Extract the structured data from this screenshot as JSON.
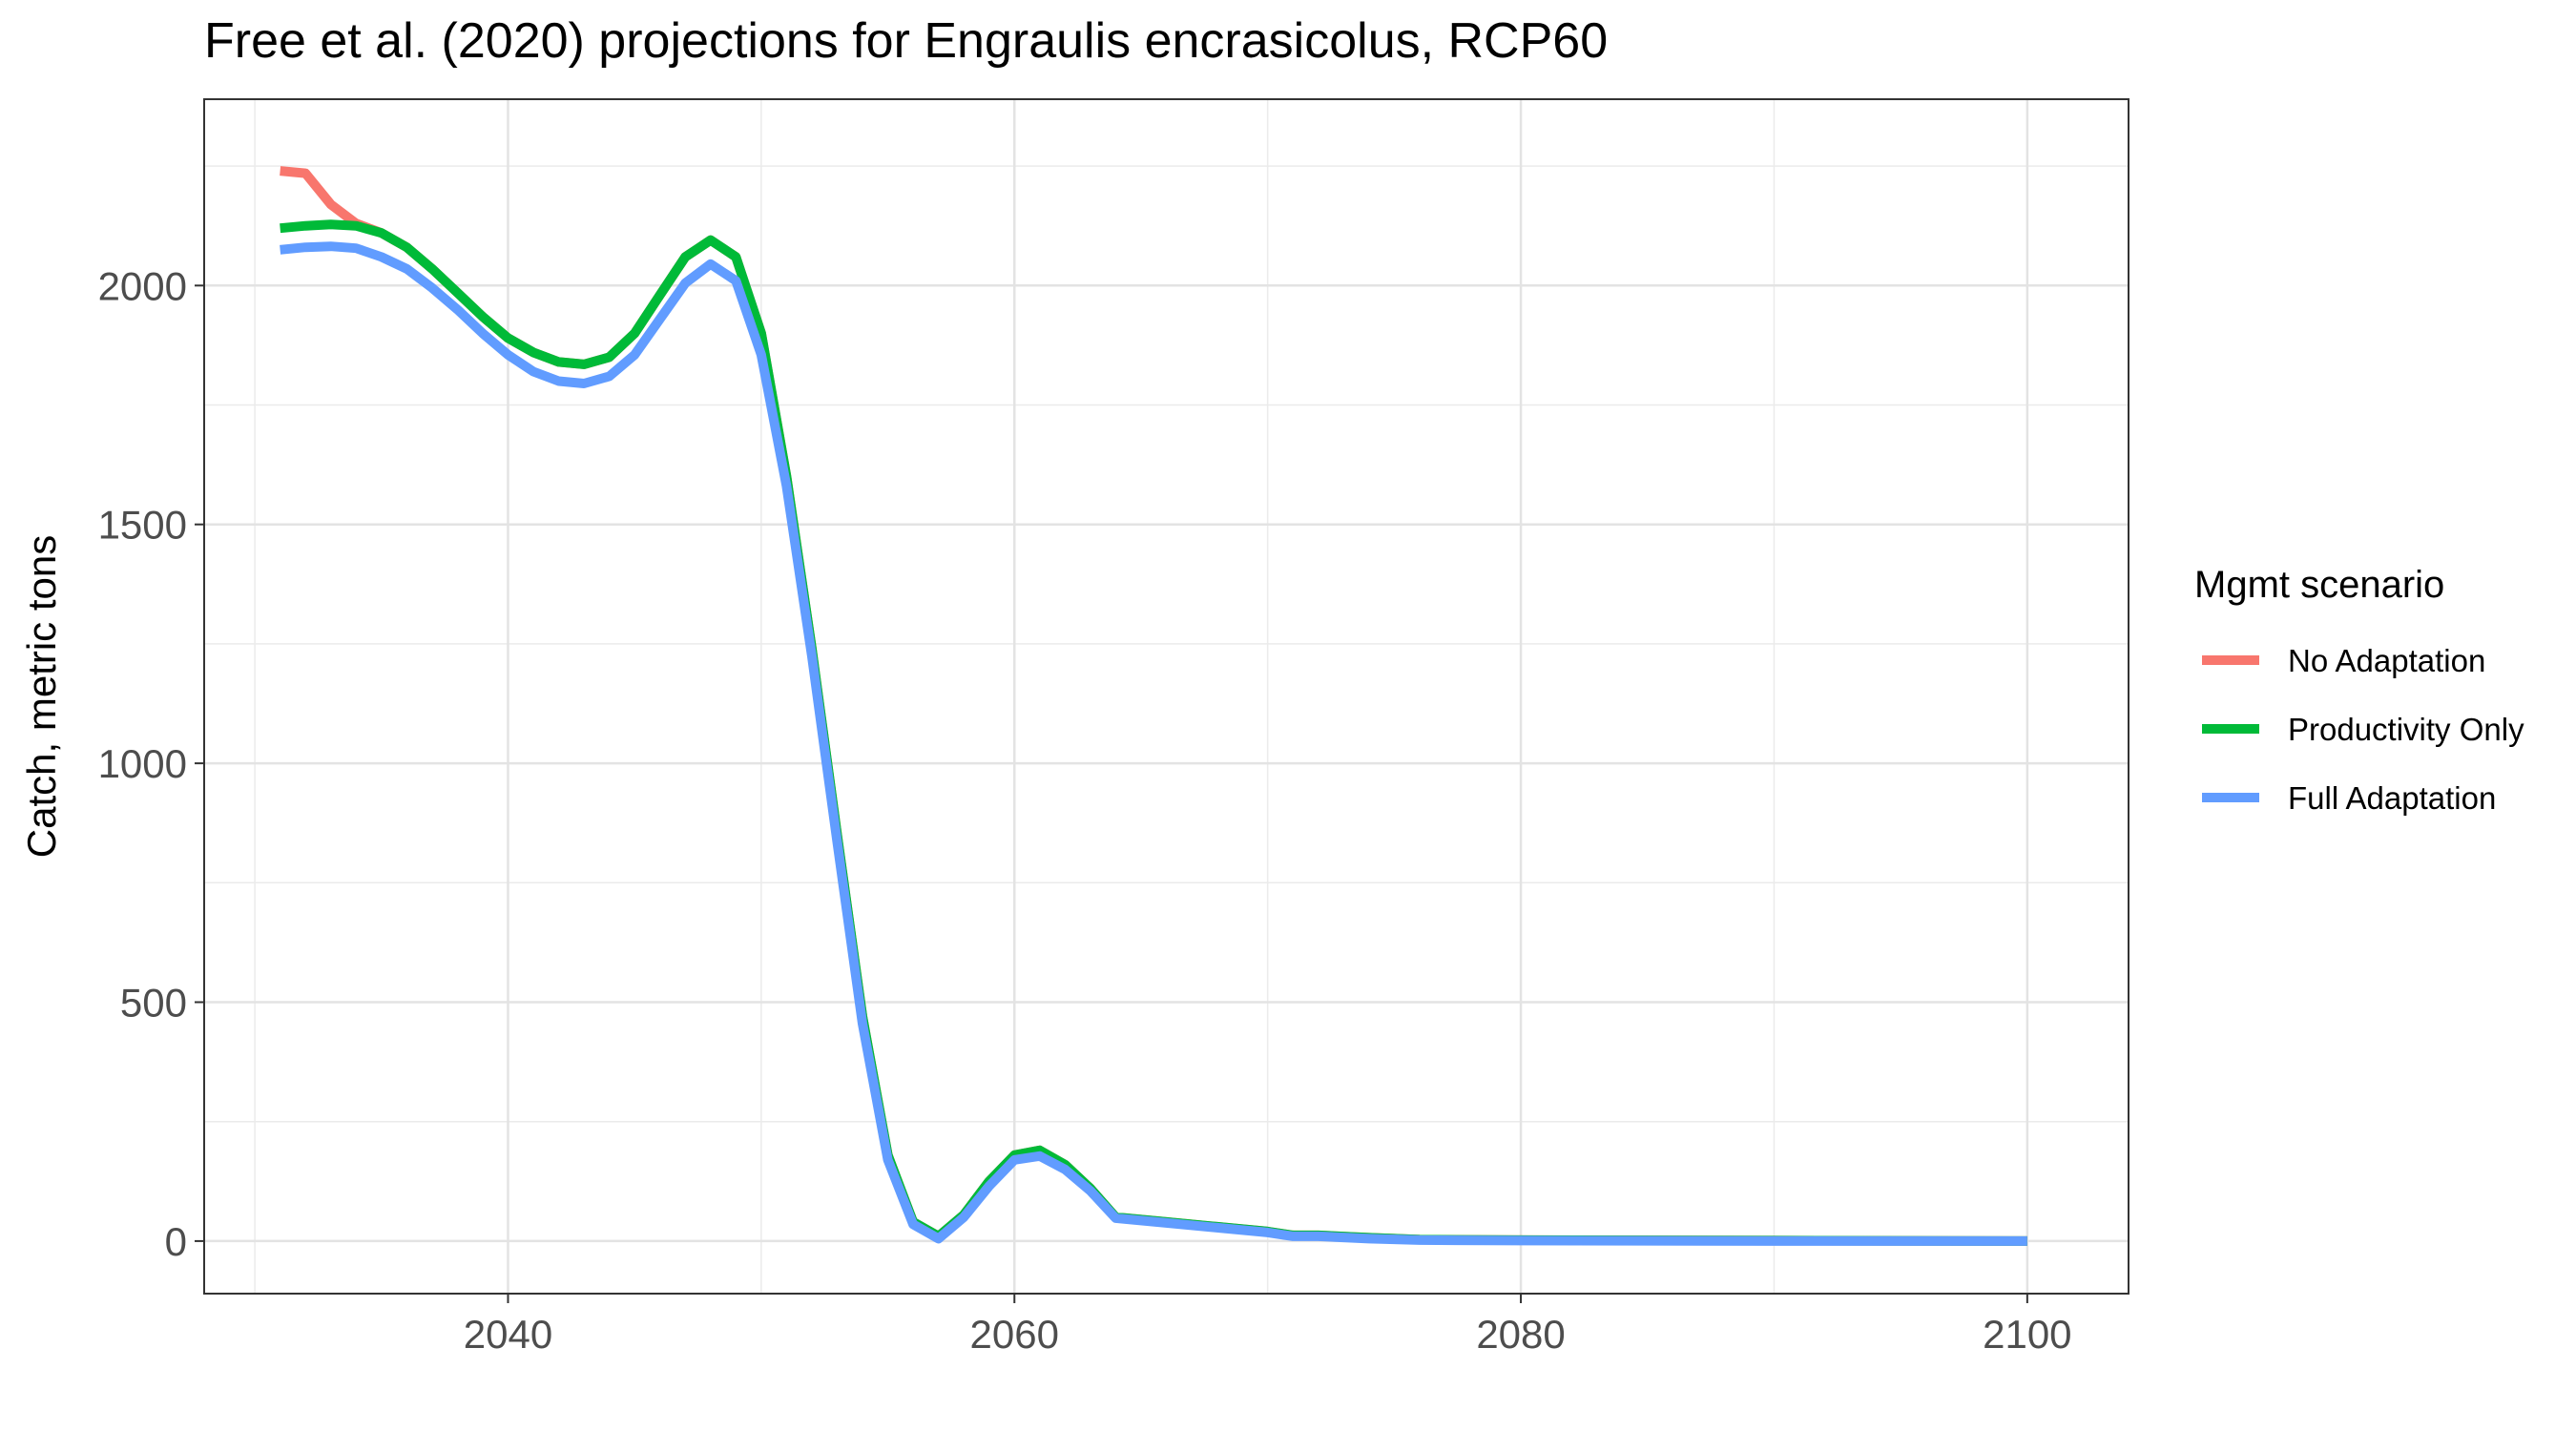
{
  "chart_data": {
    "type": "line",
    "title": "Free et al. (2020) projections for Engraulis encrasicolus, RCP60",
    "xlabel": "",
    "ylabel": "Catch, metric tons",
    "xlim": [
      2028,
      2104
    ],
    "ylim": [
      -110,
      2390
    ],
    "x_ticks": [
      2040,
      2060,
      2080,
      2100
    ],
    "y_ticks": [
      0,
      500,
      1000,
      1500,
      2000
    ],
    "grid": true,
    "legend": {
      "title": "Mgmt scenario",
      "position": "right",
      "entries": [
        "No Adaptation",
        "Productivity Only",
        "Full Adaptation"
      ]
    },
    "series": [
      {
        "name": "No Adaptation",
        "color": "#F8766D",
        "points": [
          [
            2031,
            2240
          ],
          [
            2032,
            2235
          ],
          [
            2033,
            2170
          ],
          [
            2034,
            2130
          ],
          [
            2035,
            2110
          ],
          [
            2036,
            2080
          ],
          [
            2037,
            2035
          ],
          [
            2038,
            1985
          ],
          [
            2039,
            1935
          ],
          [
            2040,
            1890
          ],
          [
            2041,
            1860
          ],
          [
            2042,
            1840
          ],
          [
            2043,
            1835
          ],
          [
            2044,
            1850
          ],
          [
            2045,
            1900
          ],
          [
            2046,
            1980
          ],
          [
            2047,
            2060
          ],
          [
            2048,
            2095
          ],
          [
            2049,
            2060
          ],
          [
            2050,
            1900
          ],
          [
            2051,
            1600
          ],
          [
            2052,
            1240
          ],
          [
            2053,
            850
          ],
          [
            2054,
            470
          ],
          [
            2055,
            180
          ],
          [
            2056,
            40
          ],
          [
            2057,
            10
          ],
          [
            2058,
            55
          ],
          [
            2059,
            125
          ],
          [
            2060,
            180
          ],
          [
            2061,
            190
          ],
          [
            2062,
            160
          ],
          [
            2063,
            110
          ],
          [
            2064,
            50
          ],
          [
            2066,
            40
          ],
          [
            2068,
            30
          ],
          [
            2070,
            20
          ],
          [
            2071,
            12
          ],
          [
            2072,
            12
          ],
          [
            2074,
            7
          ],
          [
            2076,
            3
          ],
          [
            2080,
            2
          ],
          [
            2090,
            1
          ],
          [
            2100,
            0
          ]
        ]
      },
      {
        "name": "Productivity Only",
        "color": "#00BA38",
        "points": [
          [
            2031,
            2120
          ],
          [
            2032,
            2125
          ],
          [
            2033,
            2128
          ],
          [
            2034,
            2125
          ],
          [
            2035,
            2110
          ],
          [
            2036,
            2080
          ],
          [
            2037,
            2035
          ],
          [
            2038,
            1985
          ],
          [
            2039,
            1935
          ],
          [
            2040,
            1890
          ],
          [
            2041,
            1860
          ],
          [
            2042,
            1840
          ],
          [
            2043,
            1835
          ],
          [
            2044,
            1850
          ],
          [
            2045,
            1900
          ],
          [
            2046,
            1980
          ],
          [
            2047,
            2060
          ],
          [
            2048,
            2095
          ],
          [
            2049,
            2060
          ],
          [
            2050,
            1900
          ],
          [
            2051,
            1600
          ],
          [
            2052,
            1240
          ],
          [
            2053,
            850
          ],
          [
            2054,
            470
          ],
          [
            2055,
            180
          ],
          [
            2056,
            40
          ],
          [
            2057,
            10
          ],
          [
            2058,
            55
          ],
          [
            2059,
            125
          ],
          [
            2060,
            180
          ],
          [
            2061,
            190
          ],
          [
            2062,
            160
          ],
          [
            2063,
            110
          ],
          [
            2064,
            50
          ],
          [
            2066,
            40
          ],
          [
            2068,
            30
          ],
          [
            2070,
            20
          ],
          [
            2071,
            12
          ],
          [
            2072,
            12
          ],
          [
            2074,
            7
          ],
          [
            2076,
            3
          ],
          [
            2080,
            2
          ],
          [
            2090,
            1
          ],
          [
            2100,
            0
          ]
        ]
      },
      {
        "name": "Full Adaptation",
        "color": "#619CFF",
        "points": [
          [
            2031,
            2075
          ],
          [
            2032,
            2080
          ],
          [
            2033,
            2082
          ],
          [
            2034,
            2078
          ],
          [
            2035,
            2060
          ],
          [
            2036,
            2035
          ],
          [
            2037,
            1995
          ],
          [
            2038,
            1950
          ],
          [
            2039,
            1900
          ],
          [
            2040,
            1855
          ],
          [
            2041,
            1820
          ],
          [
            2042,
            1800
          ],
          [
            2043,
            1795
          ],
          [
            2044,
            1810
          ],
          [
            2045,
            1855
          ],
          [
            2046,
            1930
          ],
          [
            2047,
            2005
          ],
          [
            2048,
            2045
          ],
          [
            2049,
            2010
          ],
          [
            2050,
            1855
          ],
          [
            2051,
            1580
          ],
          [
            2052,
            1225
          ],
          [
            2053,
            835
          ],
          [
            2054,
            455
          ],
          [
            2055,
            170
          ],
          [
            2056,
            35
          ],
          [
            2057,
            5
          ],
          [
            2058,
            50
          ],
          [
            2059,
            115
          ],
          [
            2060,
            170
          ],
          [
            2061,
            178
          ],
          [
            2062,
            150
          ],
          [
            2063,
            105
          ],
          [
            2064,
            48
          ],
          [
            2066,
            38
          ],
          [
            2068,
            28
          ],
          [
            2070,
            18
          ],
          [
            2071,
            10
          ],
          [
            2072,
            10
          ],
          [
            2074,
            5
          ],
          [
            2076,
            2
          ],
          [
            2080,
            1
          ],
          [
            2090,
            0
          ],
          [
            2100,
            0
          ]
        ]
      }
    ]
  }
}
